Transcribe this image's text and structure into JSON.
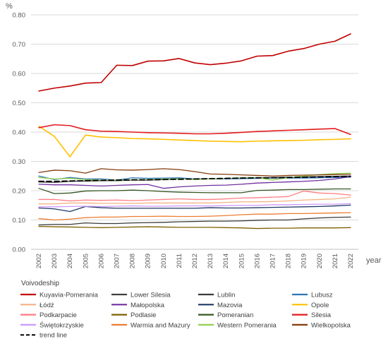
{
  "chart_data": {
    "type": "line",
    "ylabel": "%",
    "xlabel": "year",
    "legend_title": "Voivodeship",
    "legend_position": "bottom",
    "grid": true,
    "ylim": [
      0,
      0.8
    ],
    "yticks": [
      "0.00",
      "0.10",
      "0.20",
      "0.30",
      "0.40",
      "0.50",
      "0.60",
      "0.70",
      "0.80"
    ],
    "x": [
      "2002",
      "2003",
      "2004",
      "2005",
      "2006",
      "2007",
      "2008",
      "2009",
      "2010",
      "2011",
      "2012",
      "2013",
      "2014",
      "2015",
      "2016",
      "2017",
      "2018",
      "2019",
      "2020",
      "2021",
      "2022"
    ],
    "series": [
      {
        "name": "Kuyavia-Pomerania",
        "color": "#c00000",
        "width": 1.6,
        "dash": "",
        "values": [
          0.54,
          0.55,
          0.557,
          0.567,
          0.569,
          0.628,
          0.627,
          0.642,
          0.643,
          0.651,
          0.636,
          0.63,
          0.635,
          0.643,
          0.659,
          0.661,
          0.676,
          0.685,
          0.7,
          0.71,
          0.735
        ]
      },
      {
        "name": "Lower Silesia",
        "color": "#404040",
        "width": 1.3,
        "dash": "",
        "values": [
          0.23,
          0.228,
          0.232,
          0.233,
          0.234,
          0.234,
          0.236,
          0.236,
          0.238,
          0.24,
          0.24,
          0.24,
          0.241,
          0.242,
          0.243,
          0.245,
          0.246,
          0.247,
          0.248,
          0.249,
          0.25
        ]
      },
      {
        "name": "Lublin",
        "color": "#3a3a3a",
        "width": 1.3,
        "dash": "",
        "values": [
          0.083,
          0.085,
          0.085,
          0.09,
          0.088,
          0.088,
          0.09,
          0.091,
          0.092,
          0.094,
          0.095,
          0.096,
          0.096,
          0.097,
          0.099,
          0.1,
          0.1,
          0.104,
          0.107,
          0.109,
          0.11
        ]
      },
      {
        "name": "Lubusz",
        "color": "#2e75b6",
        "width": 1.3,
        "dash": "",
        "values": [
          0.25,
          0.238,
          0.245,
          0.24,
          0.24,
          0.236,
          0.244,
          0.242,
          0.243,
          0.244,
          0.24,
          0.24,
          0.24,
          0.241,
          0.242,
          0.243,
          0.243,
          0.243,
          0.244,
          0.245,
          0.246
        ]
      },
      {
        "name": "Łódź",
        "color": "#f4b183",
        "width": 1.3,
        "dash": "",
        "values": [
          0.155,
          0.155,
          0.158,
          0.158,
          0.157,
          0.157,
          0.157,
          0.158,
          0.158,
          0.158,
          0.158,
          0.158,
          0.16,
          0.162,
          0.162,
          0.163,
          0.165,
          0.168,
          0.17,
          0.172,
          0.178
        ]
      },
      {
        "name": "Małopolska",
        "color": "#7030a0",
        "width": 1.3,
        "dash": "",
        "values": [
          0.222,
          0.22,
          0.22,
          0.218,
          0.216,
          0.218,
          0.22,
          0.221,
          0.208,
          0.213,
          0.216,
          0.218,
          0.219,
          0.222,
          0.226,
          0.228,
          0.23,
          0.232,
          0.235,
          0.24,
          0.248
        ]
      },
      {
        "name": "Mazovia",
        "color": "#1f3864",
        "width": 1.3,
        "dash": "",
        "values": [
          0.141,
          0.138,
          0.129,
          0.146,
          0.142,
          0.14,
          0.14,
          0.14,
          0.14,
          0.14,
          0.14,
          0.142,
          0.141,
          0.141,
          0.142,
          0.143,
          0.144,
          0.145,
          0.146,
          0.148,
          0.151
        ]
      },
      {
        "name": "Opole",
        "color": "#ffc000",
        "width": 1.6,
        "dash": "",
        "values": [
          0.42,
          0.385,
          0.316,
          0.39,
          0.383,
          0.381,
          0.378,
          0.377,
          0.375,
          0.373,
          0.371,
          0.369,
          0.368,
          0.367,
          0.369,
          0.37,
          0.371,
          0.372,
          0.374,
          0.375,
          0.377
        ]
      },
      {
        "name": "Podkarpacie",
        "color": "#ff7c80",
        "width": 1.3,
        "dash": "",
        "values": [
          0.17,
          0.17,
          0.165,
          0.168,
          0.167,
          0.168,
          0.166,
          0.168,
          0.17,
          0.172,
          0.17,
          0.17,
          0.172,
          0.175,
          0.176,
          0.178,
          0.18,
          0.199,
          0.192,
          0.19,
          0.185
        ]
      },
      {
        "name": "Podlasie",
        "color": "#7f6000",
        "width": 1.3,
        "dash": "",
        "values": [
          0.078,
          0.077,
          0.076,
          0.075,
          0.074,
          0.075,
          0.076,
          0.077,
          0.076,
          0.075,
          0.075,
          0.075,
          0.074,
          0.073,
          0.071,
          0.072,
          0.072,
          0.073,
          0.073,
          0.073,
          0.074
        ]
      },
      {
        "name": "Pomeranian",
        "color": "#375623",
        "width": 1.3,
        "dash": "",
        "values": [
          0.208,
          0.19,
          0.192,
          0.199,
          0.2,
          0.2,
          0.202,
          0.2,
          0.197,
          0.195,
          0.194,
          0.193,
          0.193,
          0.193,
          0.201,
          0.202,
          0.204,
          0.204,
          0.205,
          0.206,
          0.206
        ]
      },
      {
        "name": "Silesia",
        "color": "#e41a1c",
        "width": 1.6,
        "dash": "",
        "values": [
          0.415,
          0.425,
          0.422,
          0.408,
          0.403,
          0.402,
          0.4,
          0.398,
          0.397,
          0.396,
          0.394,
          0.394,
          0.396,
          0.399,
          0.402,
          0.404,
          0.406,
          0.408,
          0.41,
          0.412,
          0.392
        ]
      },
      {
        "name": "Świętokrzyskie",
        "color": "#cc99ff",
        "width": 1.3,
        "dash": "",
        "values": [
          0.145,
          0.145,
          0.146,
          0.147,
          0.146,
          0.147,
          0.148,
          0.147,
          0.147,
          0.148,
          0.148,
          0.148,
          0.149,
          0.15,
          0.15,
          0.152,
          0.152,
          0.153,
          0.154,
          0.154,
          0.156
        ]
      },
      {
        "name": "Warmia and Mazury",
        "color": "#ed7d31",
        "width": 1.3,
        "dash": "",
        "values": [
          0.105,
          0.1,
          0.103,
          0.108,
          0.11,
          0.11,
          0.112,
          0.112,
          0.113,
          0.112,
          0.112,
          0.113,
          0.115,
          0.118,
          0.12,
          0.12,
          0.122,
          0.122,
          0.123,
          0.124,
          0.125
        ]
      },
      {
        "name": "Western Pomerania",
        "color": "#92d050",
        "width": 1.3,
        "dash": "",
        "values": [
          0.245,
          0.24,
          0.242,
          0.238,
          0.236,
          0.236,
          0.237,
          0.238,
          0.24,
          0.241,
          0.238,
          0.24,
          0.242,
          0.244,
          0.245,
          0.236,
          0.245,
          0.25,
          0.255,
          0.258,
          0.26
        ]
      },
      {
        "name": "Wielkopolska",
        "color": "#843c0c",
        "width": 1.3,
        "dash": "",
        "values": [
          0.262,
          0.27,
          0.268,
          0.26,
          0.275,
          0.271,
          0.27,
          0.272,
          0.275,
          0.272,
          0.265,
          0.257,
          0.256,
          0.254,
          0.252,
          0.25,
          0.252,
          0.253,
          0.254,
          0.255,
          0.256
        ]
      },
      {
        "name": "trend line",
        "color": "#000000",
        "width": 1.8,
        "dash": "7,4",
        "values": [
          0.232,
          0.232,
          0.233,
          0.234,
          0.235,
          0.236,
          0.237,
          0.237,
          0.238,
          0.239,
          0.24,
          0.241,
          0.242,
          0.243,
          0.244,
          0.244,
          0.245,
          0.246,
          0.247,
          0.248,
          0.249
        ]
      }
    ]
  }
}
